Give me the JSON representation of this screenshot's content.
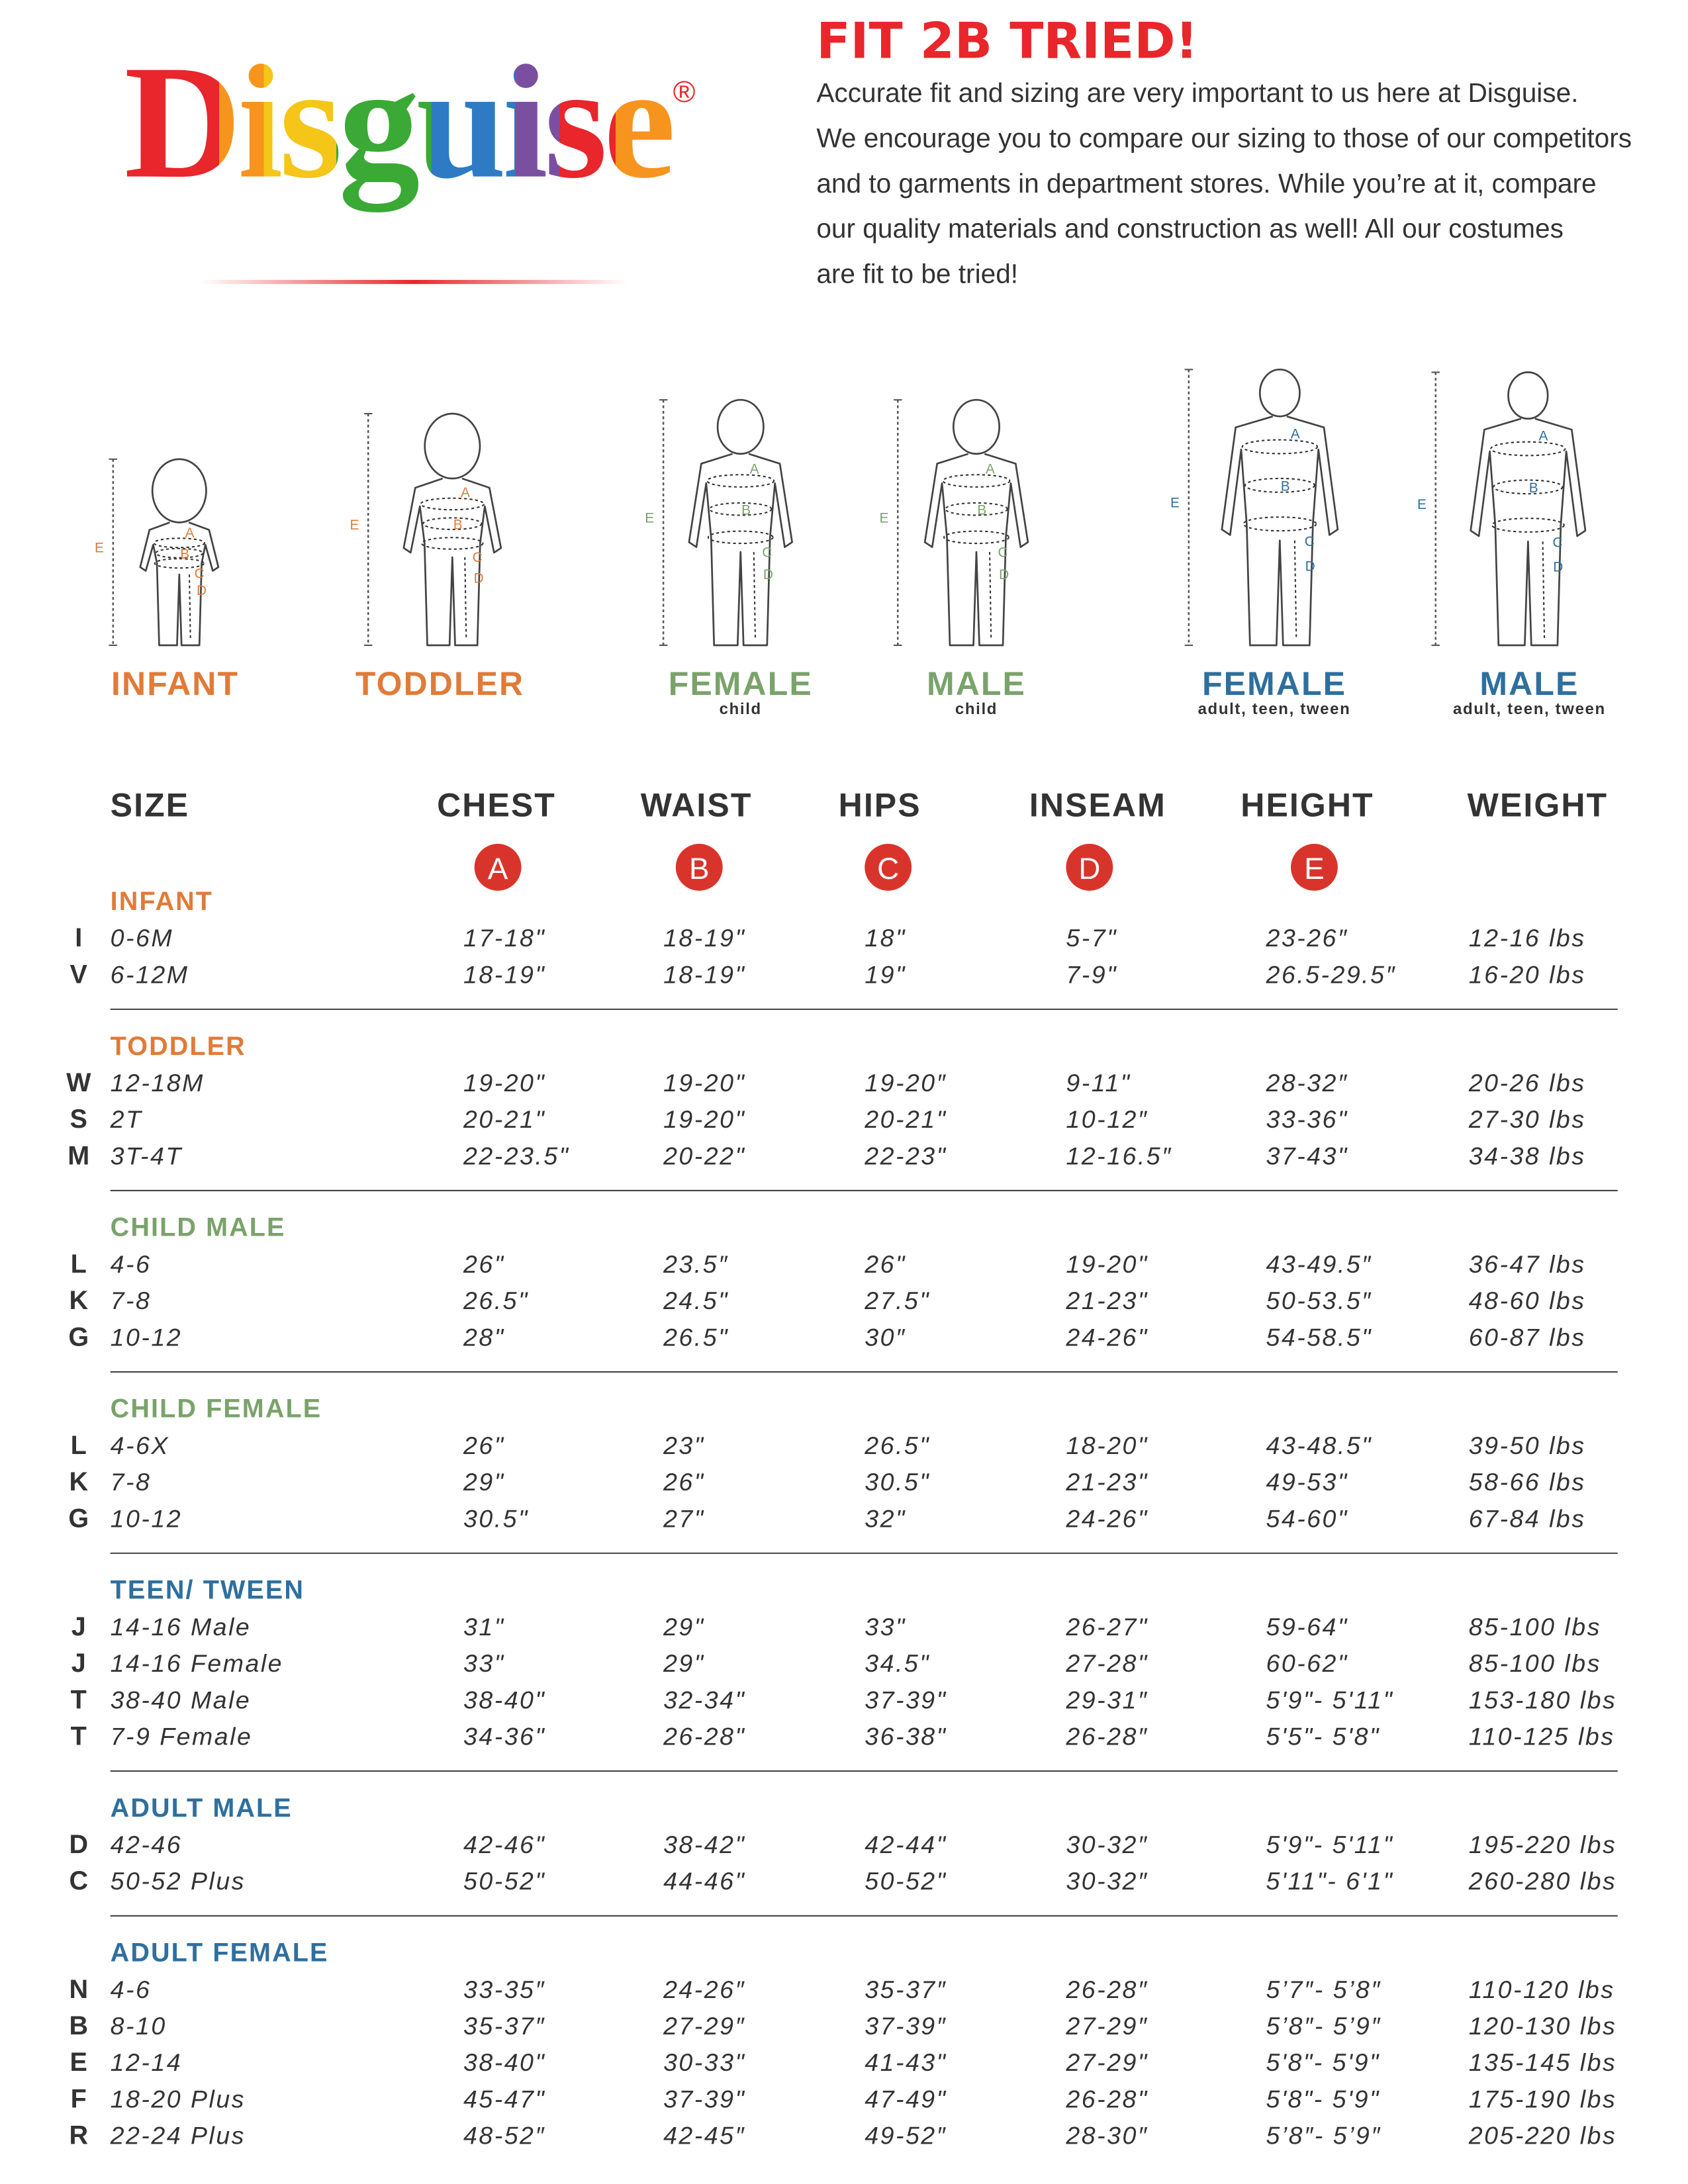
{
  "logo": {
    "text": "Disguise",
    "mark": "®"
  },
  "header": {
    "title": "FIT 2B TRIED!",
    "body": [
      "Accurate fit and sizing are very important to us here at Disguise.",
      "We encourage you to compare our sizing to those of our competitors",
      "and to garments in department stores. While you’re at it, compare",
      "our quality materials and construction as well! All our costumes",
      "are fit to be tried!"
    ]
  },
  "figures": [
    {
      "label": "INFANT",
      "markers": [
        "A",
        "B",
        "C",
        "D",
        "E"
      ]
    },
    {
      "label": "TODDLER",
      "markers": [
        "A",
        "B",
        "C",
        "D",
        "E"
      ]
    },
    {
      "label": "FEMALE",
      "sublabel": "child",
      "markers": [
        "A",
        "B",
        "C",
        "D",
        "E"
      ]
    },
    {
      "label": "MALE",
      "sublabel": "child",
      "markers": [
        "A",
        "B",
        "C",
        "D",
        "E"
      ]
    },
    {
      "label": "FEMALE",
      "sublabel": "adult, teen, tween",
      "markers": [
        "A",
        "B",
        "C",
        "D",
        "E"
      ]
    },
    {
      "label": "MALE",
      "sublabel": "adult, teen, tween",
      "markers": [
        "A",
        "B",
        "C",
        "D",
        "E"
      ]
    }
  ],
  "table": {
    "columns": [
      "SIZE",
      "CHEST",
      "WAIST",
      "HIPS",
      "INSEAM",
      "HEIGHT",
      "WEIGHT"
    ],
    "badges": [
      "A",
      "B",
      "C",
      "D",
      "E"
    ],
    "groups": [
      {
        "title": "INFANT",
        "rows": [
          [
            "I",
            "0-6M",
            "17-18\"",
            "18-19\"",
            "18\"",
            "5-7\"",
            "23-26″",
            "12-16 lbs"
          ],
          [
            "V",
            "6-12M",
            "18-19\"",
            "18-19\"",
            "19\"",
            "7-9\"",
            "26.5-29.5″",
            "16-20 lbs"
          ]
        ]
      },
      {
        "title": "TODDLER",
        "rows": [
          [
            "W",
            "12-18M",
            "19-20\"",
            "19-20\"",
            "19-20″",
            "9-11\"",
            "28-32″",
            "20-26 lbs"
          ],
          [
            "S",
            "2T",
            "20-21\"",
            "19-20\"",
            "20-21\"",
            "10-12″",
            "33-36\"",
            "27-30 lbs"
          ],
          [
            "M",
            "3T-4T",
            "22-23.5\"",
            "20-22\"",
            "22-23\"",
            "12-16.5″",
            "37-43\"",
            "34-38 lbs"
          ]
        ]
      },
      {
        "title": "CHILD MALE",
        "rows": [
          [
            "L",
            "4-6",
            "26\"",
            "23.5″",
            "26\"",
            "19-20\"",
            "43-49.5″",
            "36-47 lbs"
          ],
          [
            "K",
            "7-8",
            "26.5\"",
            "24.5\"",
            "27.5\"",
            "21-23\"",
            "50-53.5″",
            "48-60 lbs"
          ],
          [
            "G",
            "10-12",
            "28\"",
            "26.5\"",
            "30″",
            "24-26\"",
            "54-58.5\"",
            "60-87 lbs"
          ]
        ]
      },
      {
        "title": "CHILD FEMALE",
        "rows": [
          [
            "L",
            "4-6X",
            "26\"",
            "23\"",
            "26.5\"",
            "18-20\"",
            "43-48.5\"",
            "39-50 lbs"
          ],
          [
            "K",
            "7-8",
            "29\"",
            "26\"",
            "30.5\"",
            "21-23\"",
            "49-53\"",
            "58-66 lbs"
          ],
          [
            "G",
            "10-12",
            "30.5\"",
            "27\"",
            "32\"",
            "24-26\"",
            "54-60\"",
            "67-84 lbs"
          ]
        ]
      },
      {
        "title": "TEEN/ TWEEN",
        "rows": [
          [
            "J",
            "14-16 Male",
            "31\"",
            "29\"",
            "33\"",
            "26-27\"",
            "59-64\"",
            "85-100 lbs"
          ],
          [
            "J",
            "14-16 Female",
            "33\"",
            "29\"",
            "34.5\"",
            "27-28\"",
            "60-62\"",
            "85-100 lbs"
          ],
          [
            "T",
            "38-40 Male",
            "38-40\"",
            "32-34\"",
            "37-39\"",
            "29-31″",
            "5'9\"- 5'11\"",
            "153-180 lbs"
          ],
          [
            "T",
            "7-9 Female",
            "34-36\"",
            "26-28\"",
            "36-38\"",
            "26-28″",
            "5'5\"- 5'8\"",
            "110-125 lbs"
          ]
        ]
      },
      {
        "title": "ADULT MALE",
        "rows": [
          [
            "D",
            "42-46",
            "42-46\"",
            "38-42\"",
            "42-44\"",
            "30-32″",
            "5'9\"- 5'11\"",
            "195-220 lbs"
          ],
          [
            "C",
            "50-52 Plus",
            "50-52\"",
            "44-46\"",
            "50-52\"",
            "30-32″",
            "5'11\"- 6'1\"",
            "260-280 lbs"
          ]
        ]
      },
      {
        "title": "ADULT FEMALE",
        "rows": [
          [
            "N",
            "4-6",
            "33-35″",
            "24-26″",
            "35-37″",
            "26-28″",
            "5’7″- 5’8″",
            "110-120 lbs"
          ],
          [
            "B",
            "8-10",
            "35-37″",
            "27-29″",
            "37-39″",
            "27-29″",
            "5’8″- 5’9″",
            "120-130 lbs"
          ],
          [
            "E",
            "12-14",
            "38-40\"",
            "30-33\"",
            "41-43\"",
            "27-29\"",
            "5'8\"- 5'9\"",
            "135-145 lbs"
          ],
          [
            "F",
            "18-20 Plus",
            "45-47\"",
            "37-39\"",
            "47-49\"",
            "26-28\"",
            "5'8\"- 5'9\"",
            "175-190 lbs"
          ],
          [
            "R",
            "22-24 Plus",
            "48-52″",
            "42-45″",
            "49-52″",
            "28-30″",
            "5’8″- 5’9″",
            "205-220 lbs"
          ]
        ]
      }
    ]
  }
}
